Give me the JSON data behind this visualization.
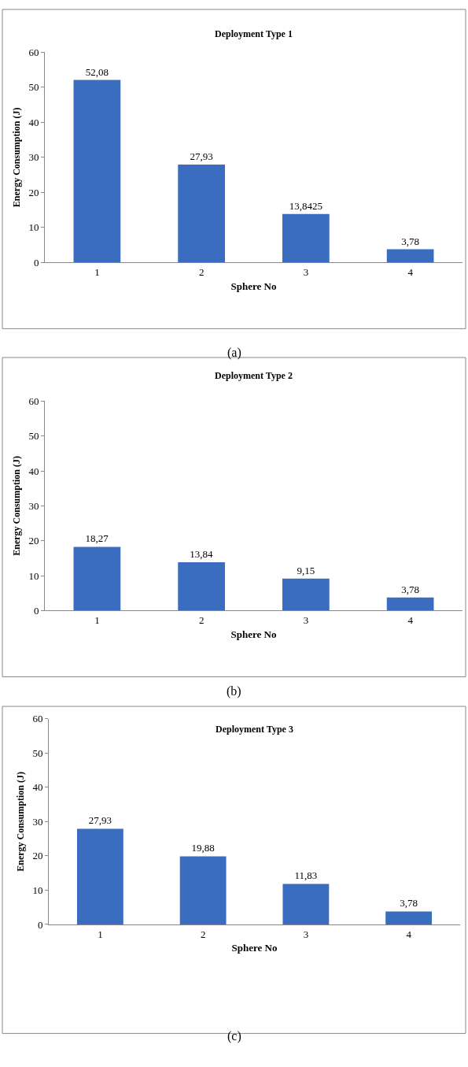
{
  "chart_data": [
    {
      "type": "bar",
      "title": "Deployment Type 1",
      "xlabel": "Sphere No",
      "ylabel": "Energy Consumption (J)",
      "categories": [
        "1",
        "2",
        "3",
        "4"
      ],
      "values": [
        52.08,
        27.93,
        13.8425,
        3.78
      ],
      "value_labels": [
        "52,08",
        "27,93",
        "13,8425",
        "3,78"
      ],
      "color": "#3a6cbf",
      "ylim": [
        0,
        60
      ],
      "yticks": [
        0,
        10,
        20,
        30,
        40,
        50,
        60
      ],
      "annotations": [
        "(a)"
      ]
    },
    {
      "type": "bar",
      "title": "Deployment Type 2",
      "xlabel": "Sphere No",
      "ylabel": "Energy Consumption (J)",
      "categories": [
        "1",
        "2",
        "3",
        "4"
      ],
      "values": [
        18.27,
        13.84,
        9.15,
        3.78
      ],
      "value_labels": [
        "18,27",
        "13,84",
        "9,15",
        "3,78"
      ],
      "color": "#3a6cbf",
      "ylim": [
        0,
        60
      ],
      "yticks": [
        0,
        10,
        20,
        30,
        40,
        50,
        60
      ],
      "annotations": [
        "(b)"
      ]
    },
    {
      "type": "bar",
      "title": "Deployment Type 3",
      "xlabel": "Sphere No",
      "ylabel": "Energy Consumption (J)",
      "categories": [
        "1",
        "2",
        "3",
        "4"
      ],
      "values": [
        27.93,
        19.88,
        11.83,
        3.78
      ],
      "value_labels": [
        "27,93",
        "19,88",
        "11,83",
        "3,78"
      ],
      "color": "#3a6cbf",
      "ylim": [
        0,
        60
      ],
      "yticks": [
        0,
        10,
        20,
        30,
        40,
        50,
        60
      ],
      "annotations": [
        "(c)"
      ]
    }
  ]
}
